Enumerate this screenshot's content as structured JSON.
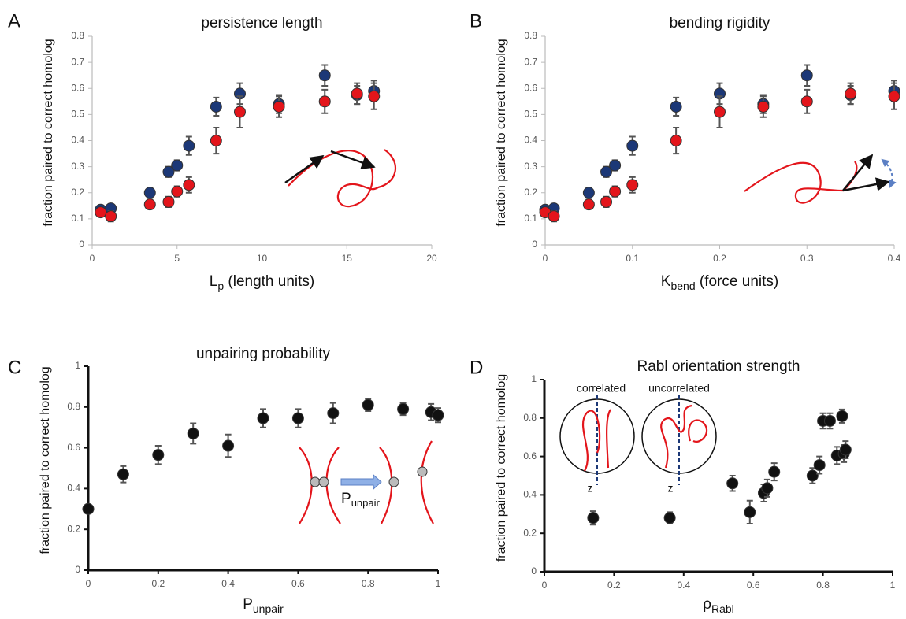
{
  "chart_data": [
    {
      "type": "scatter",
      "panel": "A",
      "title": "persistence length",
      "ylabel": "fraction paired to correct homolog",
      "xlabel": {
        "text": "L",
        "sub": "p",
        "suffix": " (length units)"
      },
      "xlim": [
        0,
        20
      ],
      "xticks": [
        0,
        5,
        10,
        15,
        20
      ],
      "ylim": [
        0,
        0.8
      ],
      "yticks": [
        0,
        0.1,
        0.2,
        0.3,
        0.4,
        0.5,
        0.6,
        0.7,
        0.8
      ],
      "series": [
        {
          "color": "#1c3877",
          "x": [
            0.5,
            1.1,
            3.4,
            4.5,
            5,
            5.7,
            7.3,
            8.7,
            11,
            13.7,
            15.6,
            16.6
          ],
          "values": [
            0.135,
            0.14,
            0.2,
            0.28,
            0.305,
            0.38,
            0.53,
            0.58,
            0.54,
            0.65,
            0.575,
            0.59
          ],
          "errors": [
            0.01,
            0.015,
            0.02,
            0.02,
            0.02,
            0.035,
            0.035,
            0.04,
            0.035,
            0.04,
            0.035,
            0.04
          ]
        },
        {
          "color": "#e3151b",
          "x": [
            0.5,
            1.1,
            3.4,
            4.5,
            5,
            5.7,
            7.3,
            8.7,
            11,
            13.7,
            15.6,
            16.6
          ],
          "values": [
            0.125,
            0.11,
            0.155,
            0.165,
            0.205,
            0.23,
            0.4,
            0.51,
            0.53,
            0.55,
            0.58,
            0.57
          ],
          "errors": [
            0.015,
            0.02,
            0.015,
            0.02,
            0.02,
            0.03,
            0.05,
            0.06,
            0.04,
            0.045,
            0.04,
            0.05
          ]
        }
      ]
    },
    {
      "type": "scatter",
      "panel": "B",
      "title": "bending rigidity",
      "ylabel": "fraction paired to correct homolog",
      "xlabel": {
        "text": "K",
        "sub": "bend",
        "suffix": " (force units)"
      },
      "xlim": [
        0,
        0.4
      ],
      "xticks": [
        0,
        0.1,
        0.2,
        0.3,
        0.4
      ],
      "ylim": [
        0,
        0.8
      ],
      "yticks": [
        0,
        0.1,
        0.2,
        0.3,
        0.4,
        0.5,
        0.6,
        0.7,
        0.8
      ],
      "series": [
        {
          "color": "#1c3877",
          "x": [
            0,
            0.01,
            0.05,
            0.07,
            0.08,
            0.1,
            0.15,
            0.2,
            0.25,
            0.3,
            0.35,
            0.4
          ],
          "values": [
            0.135,
            0.14,
            0.2,
            0.28,
            0.305,
            0.38,
            0.53,
            0.58,
            0.54,
            0.65,
            0.575,
            0.59
          ],
          "errors": [
            0.01,
            0.015,
            0.02,
            0.02,
            0.02,
            0.035,
            0.035,
            0.04,
            0.035,
            0.04,
            0.035,
            0.04
          ]
        },
        {
          "color": "#e3151b",
          "x": [
            0,
            0.01,
            0.05,
            0.07,
            0.08,
            0.1,
            0.15,
            0.2,
            0.25,
            0.3,
            0.35,
            0.4
          ],
          "values": [
            0.125,
            0.11,
            0.155,
            0.165,
            0.205,
            0.23,
            0.4,
            0.51,
            0.53,
            0.55,
            0.58,
            0.57
          ],
          "errors": [
            0.015,
            0.02,
            0.015,
            0.02,
            0.02,
            0.03,
            0.05,
            0.06,
            0.04,
            0.045,
            0.04,
            0.05
          ]
        }
      ]
    },
    {
      "type": "scatter",
      "panel": "C",
      "title": "unpairing probability",
      "ylabel": "fraction paired to correct homolog",
      "xlabel": {
        "text": "P",
        "sub": "unpair"
      },
      "annotation": {
        "text": "P",
        "sub": "unpair"
      },
      "xlim": [
        0,
        1
      ],
      "xticks": [
        0,
        0.2,
        0.4,
        0.6,
        0.8,
        1
      ],
      "ylim": [
        0,
        1
      ],
      "yticks": [
        0,
        0.2,
        0.4,
        0.6,
        0.8,
        1
      ],
      "series": [
        {
          "color": "#111111",
          "x": [
            0,
            0.1,
            0.2,
            0.3,
            0.4,
            0.5,
            0.6,
            0.7,
            0.8,
            0.9,
            0.98,
            1
          ],
          "values": [
            0.3,
            0.47,
            0.565,
            0.67,
            0.61,
            0.745,
            0.745,
            0.77,
            0.81,
            0.79,
            0.775,
            0.76
          ],
          "errors": [
            0.02,
            0.04,
            0.045,
            0.05,
            0.055,
            0.045,
            0.045,
            0.05,
            0.03,
            0.03,
            0.04,
            0.035
          ]
        }
      ]
    },
    {
      "type": "scatter",
      "panel": "D",
      "title": "Rabl orientation strength",
      "ylabel": "fraction paired to correct homolog",
      "xlabel": {
        "text": "ρ",
        "sub": "Rabl"
      },
      "annotations": [
        "correlated",
        "uncorrelated",
        "z",
        "z"
      ],
      "xlim": [
        0,
        1
      ],
      "xticks": [
        0,
        0.2,
        0.4,
        0.6,
        0.8,
        1
      ],
      "ylim": [
        0,
        1
      ],
      "yticks": [
        0,
        0.2,
        0.4,
        0.6,
        0.8,
        1
      ],
      "series": [
        {
          "color": "#111111",
          "x": [
            0.14,
            0.36,
            0.54,
            0.59,
            0.63,
            0.64,
            0.66,
            0.77,
            0.79,
            0.8,
            0.82,
            0.84,
            0.855,
            0.86,
            0.865
          ],
          "values": [
            0.28,
            0.28,
            0.46,
            0.31,
            0.41,
            0.435,
            0.52,
            0.5,
            0.555,
            0.785,
            0.785,
            0.605,
            0.81,
            0.615,
            0.635
          ],
          "errors": [
            0.035,
            0.03,
            0.04,
            0.06,
            0.045,
            0.045,
            0.045,
            0.04,
            0.045,
            0.04,
            0.04,
            0.045,
            0.035,
            0.045,
            0.045
          ]
        }
      ]
    }
  ]
}
